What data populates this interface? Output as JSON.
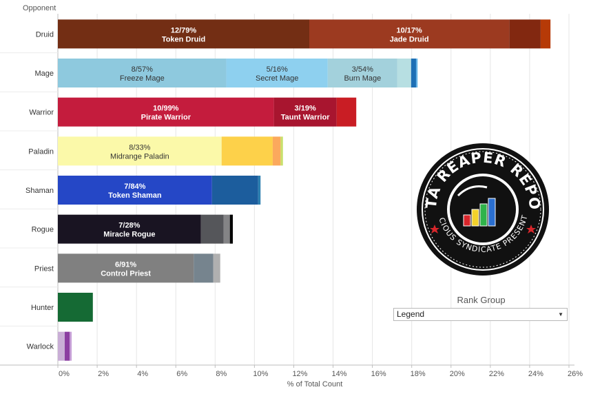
{
  "chart_data": {
    "type": "bar",
    "orientation": "horizontal",
    "stacked": true,
    "ylabel": "Opponent",
    "xlabel": "% of Total Count",
    "xlim": [
      0,
      26
    ],
    "xticks": [
      "0%",
      "2%",
      "4%",
      "6%",
      "8%",
      "10%",
      "12%",
      "14%",
      "16%",
      "18%",
      "20%",
      "22%",
      "24%",
      "26%"
    ],
    "grid": "vertical",
    "categories": [
      "Druid",
      "Mage",
      "Warrior",
      "Paladin",
      "Shaman",
      "Rogue",
      "Priest",
      "Hunter",
      "Warlock"
    ],
    "rows": [
      {
        "category": "Druid",
        "segments": [
          {
            "value": 12.79,
            "color": "#732e14",
            "label": "12/79%",
            "archetype": "Token Druid"
          },
          {
            "value": 10.17,
            "color": "#9c3a20",
            "label": "10/17%",
            "archetype": "Jade Druid"
          },
          {
            "value": 1.6,
            "color": "#822810"
          },
          {
            "value": 0.5,
            "color": "#b63a07"
          }
        ]
      },
      {
        "category": "Mage",
        "segments": [
          {
            "value": 8.57,
            "color": "#8ec9de",
            "label": "8/57%",
            "archetype": "Freeze Mage"
          },
          {
            "value": 5.16,
            "color": "#8ed0ef",
            "label": "5/16%",
            "archetype": "Secret Mage"
          },
          {
            "value": 3.54,
            "color": "#a3d1dc",
            "label": "3/54%",
            "archetype": "Burn Mage"
          },
          {
            "value": 0.7,
            "color": "#b7dfe2"
          },
          {
            "value": 0.25,
            "color": "#1d6fb5"
          },
          {
            "value": 0.08,
            "color": "#64b3e6"
          }
        ]
      },
      {
        "category": "Warrior",
        "segments": [
          {
            "value": 10.99,
            "color": "#c41c3d",
            "label": "10/99%",
            "archetype": "Pirate Warrior"
          },
          {
            "value": 3.19,
            "color": "#a8152f",
            "label": "3/19%",
            "archetype": "Taunt Warrior"
          },
          {
            "value": 1.0,
            "color": "#c91d24"
          }
        ]
      },
      {
        "category": "Paladin",
        "segments": [
          {
            "value": 8.33,
            "color": "#fbf9a9",
            "label": "8/33%",
            "archetype": "Midrange Paladin"
          },
          {
            "value": 2.6,
            "color": "#fdd14a"
          },
          {
            "value": 0.4,
            "color": "#fba95d"
          },
          {
            "value": 0.12,
            "color": "#c8e06c"
          }
        ]
      },
      {
        "category": "Shaman",
        "segments": [
          {
            "value": 7.84,
            "color": "#2547c6",
            "label": "7/84%",
            "archetype": "Token Shaman"
          },
          {
            "value": 2.35,
            "color": "#1c5d9d"
          },
          {
            "value": 0.12,
            "color": "#2b7fb0"
          }
        ]
      },
      {
        "category": "Rogue",
        "segments": [
          {
            "value": 7.28,
            "color": "#191422",
            "label": "7/28%",
            "archetype": "Miracle Rogue"
          },
          {
            "value": 1.15,
            "color": "#55565a"
          },
          {
            "value": 0.32,
            "color": "#848486"
          },
          {
            "value": 0.15,
            "color": "#000000"
          }
        ]
      },
      {
        "category": "Priest",
        "segments": [
          {
            "value": 6.91,
            "color": "#808080",
            "label": "6/91%",
            "archetype": "Control Priest"
          },
          {
            "value": 1.0,
            "color": "#76848e"
          },
          {
            "value": 0.35,
            "color": "#b0b0b0"
          }
        ]
      },
      {
        "category": "Hunter",
        "segments": [
          {
            "value": 1.78,
            "color": "#156a34"
          }
        ]
      },
      {
        "category": "Warlock",
        "segments": [
          {
            "value": 0.35,
            "color": "#c9aed6"
          },
          {
            "value": 0.25,
            "color": "#8b3ea1"
          },
          {
            "value": 0.1,
            "color": "#c59cd6"
          }
        ]
      }
    ]
  },
  "legend": {
    "title": "Rank Group",
    "selected": "Legend"
  },
  "logo": {
    "top_text": "DATA REAPER REPORT",
    "bottom_text": "VICIOUS SYNDICATE PRESENTS"
  }
}
